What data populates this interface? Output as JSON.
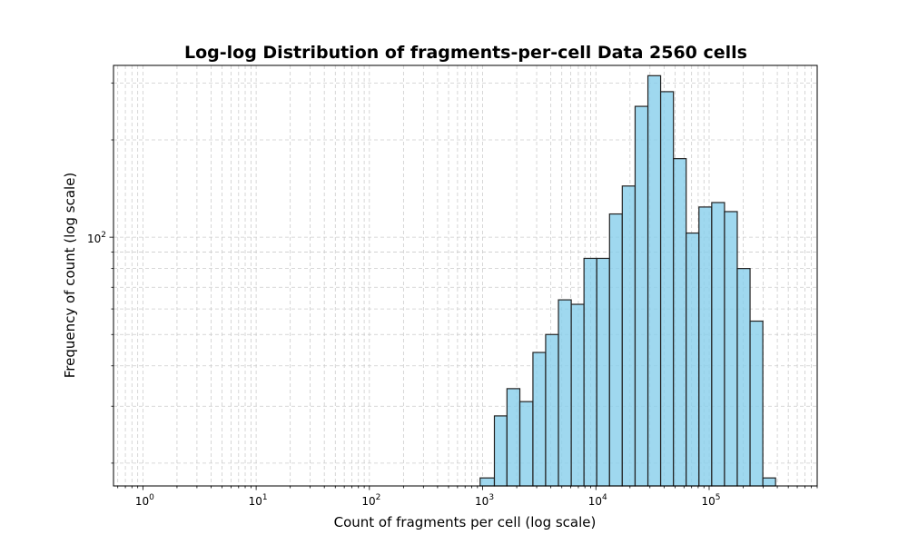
{
  "chart_data": {
    "type": "bar",
    "title": "Log-log Distribution of fragments-per-cell Data 2560 cells",
    "xlabel": "Count of fragments per cell (log scale)",
    "ylabel": "Frequency of count (log scale)",
    "x_scale": "log",
    "y_scale": "log",
    "xlim": [
      0.55,
      900000
    ],
    "ylim": [
      17,
      340
    ],
    "grid": true,
    "x_ticks": [
      {
        "base": "10",
        "exp": "0",
        "value": 1
      },
      {
        "base": "10",
        "exp": "1",
        "value": 10
      },
      {
        "base": "10",
        "exp": "2",
        "value": 100
      },
      {
        "base": "10",
        "exp": "3",
        "value": 1000
      },
      {
        "base": "10",
        "exp": "4",
        "value": 10000
      },
      {
        "base": "10",
        "exp": "5",
        "value": 100000
      }
    ],
    "y_ticks": [
      {
        "base": "10",
        "exp": "2",
        "value": 100
      }
    ],
    "bar_color": "#87CEEB",
    "bar_edge_color": "#222222",
    "bins": [
      {
        "x0": 950,
        "x1": 1270,
        "count": 18
      },
      {
        "x0": 1270,
        "x1": 1640,
        "count": 28
      },
      {
        "x0": 1640,
        "x1": 2130,
        "count": 34
      },
      {
        "x0": 2130,
        "x1": 2780,
        "count": 31
      },
      {
        "x0": 2780,
        "x1": 3600,
        "count": 44
      },
      {
        "x0": 3600,
        "x1": 4670,
        "count": 50
      },
      {
        "x0": 4670,
        "x1": 6060,
        "count": 64
      },
      {
        "x0": 6060,
        "x1": 7850,
        "count": 62
      },
      {
        "x0": 7850,
        "x1": 10180,
        "count": 86
      },
      {
        "x0": 10180,
        "x1": 13200,
        "count": 86
      },
      {
        "x0": 13200,
        "x1": 17100,
        "count": 118
      },
      {
        "x0": 17100,
        "x1": 22200,
        "count": 144
      },
      {
        "x0": 22200,
        "x1": 28800,
        "count": 254
      },
      {
        "x0": 28800,
        "x1": 37300,
        "count": 316
      },
      {
        "x0": 37300,
        "x1": 48400,
        "count": 282
      },
      {
        "x0": 48400,
        "x1": 62700,
        "count": 175
      },
      {
        "x0": 62700,
        "x1": 81300,
        "count": 103
      },
      {
        "x0": 81300,
        "x1": 105400,
        "count": 124
      },
      {
        "x0": 105400,
        "x1": 136700,
        "count": 128
      },
      {
        "x0": 136700,
        "x1": 177200,
        "count": 120
      },
      {
        "x0": 177200,
        "x1": 229800,
        "count": 80
      },
      {
        "x0": 229800,
        "x1": 298000,
        "count": 55
      },
      {
        "x0": 298000,
        "x1": 386000,
        "count": 18
      }
    ]
  }
}
